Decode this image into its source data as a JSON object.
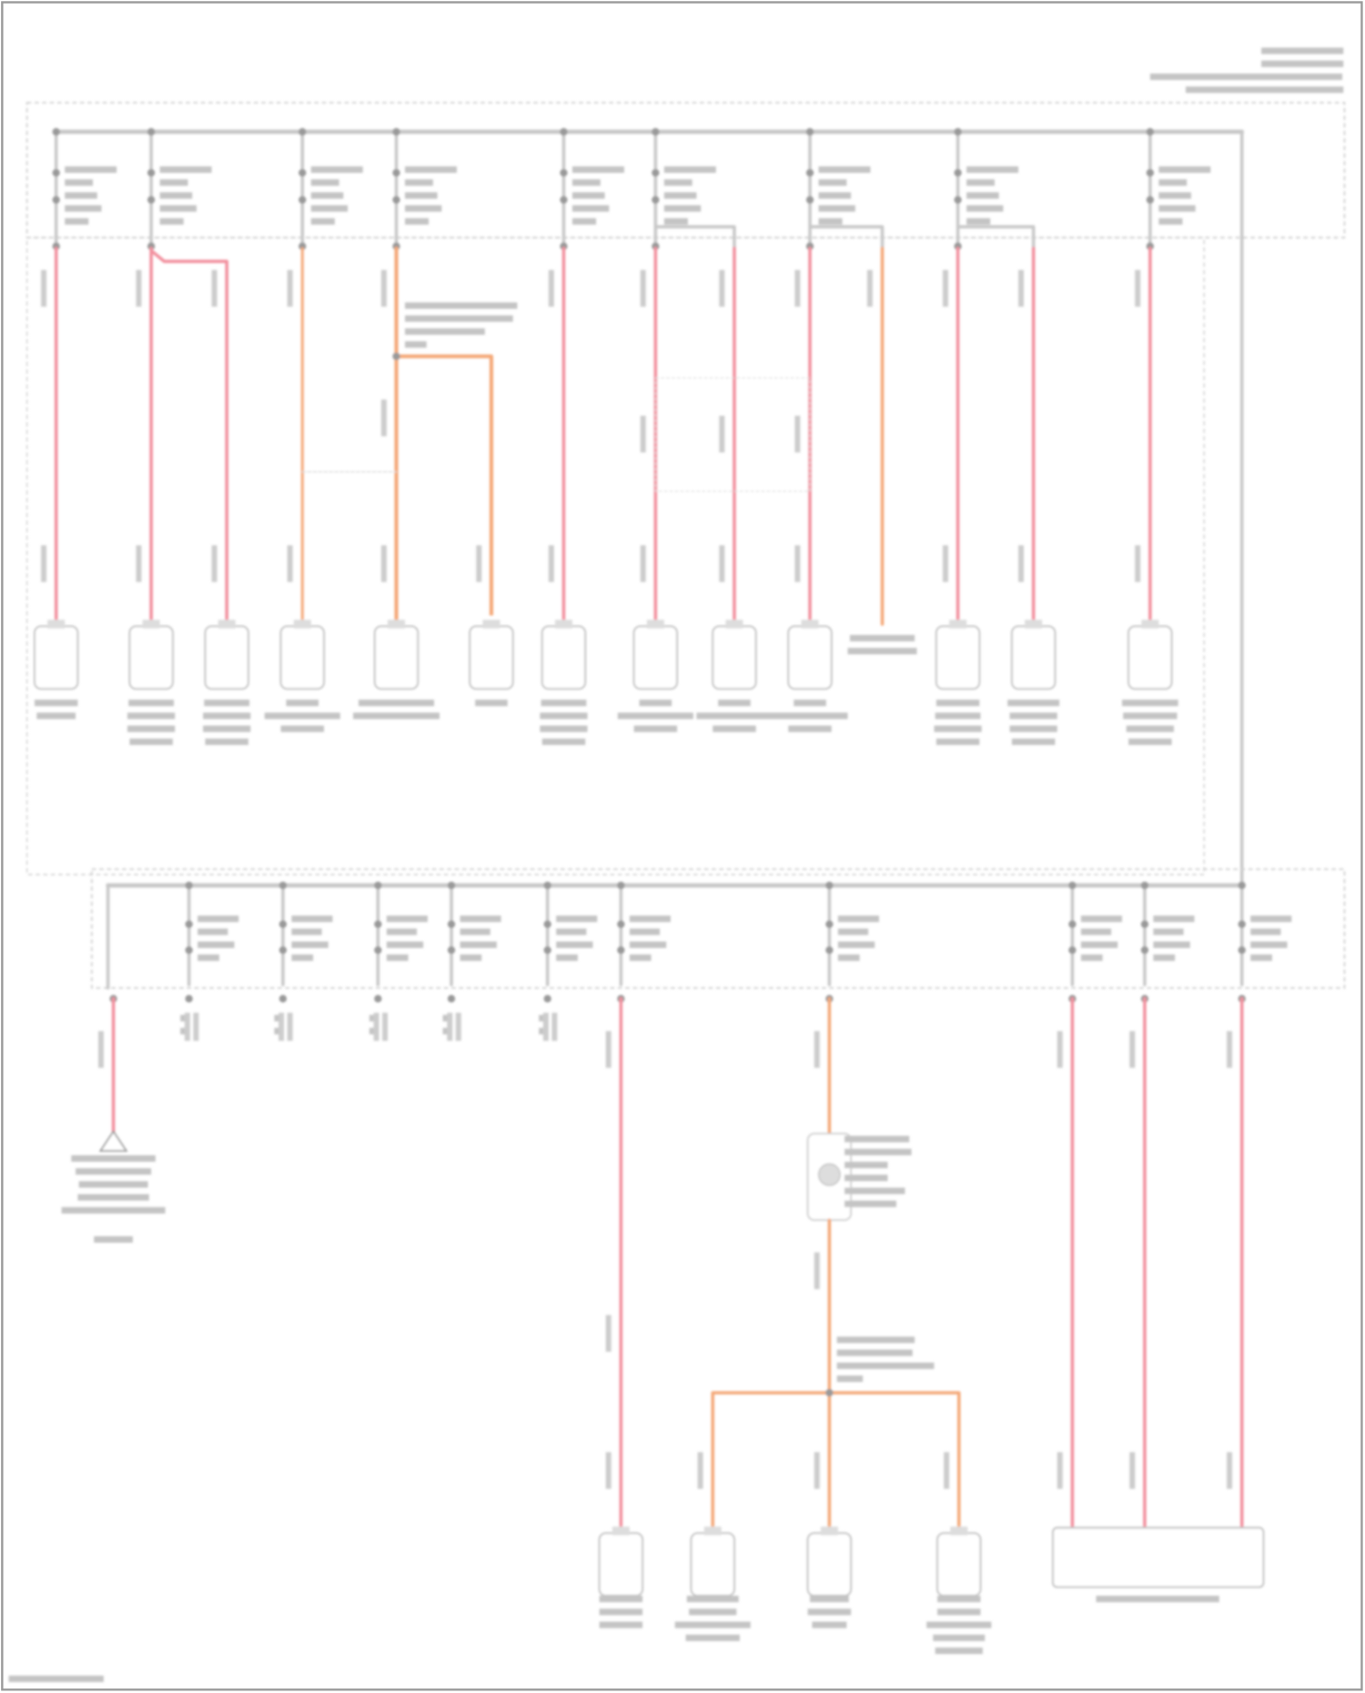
{
  "diagram": {
    "kind": "wiring-diagram",
    "text_legibility": "blurred",
    "colors": {
      "background": "#ffffff",
      "frame": "#9a9a9a",
      "bus": "#c8c8c8",
      "dashed_box": "#d0d0d0",
      "wire_pink": "#f2909e",
      "wire_orange": "#f4a878",
      "text_placeholder": "#c4c4c4"
    }
  }
}
